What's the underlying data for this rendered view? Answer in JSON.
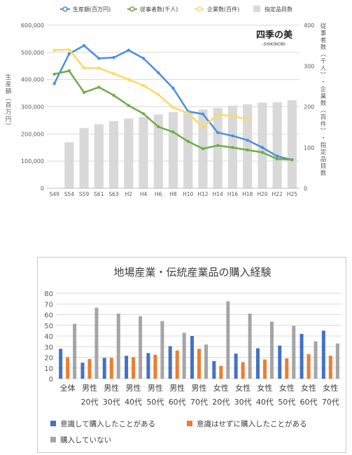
{
  "chart_data": [
    {
      "type": "bar",
      "categories": [
        "S49",
        "S54",
        "S59",
        "S61",
        "S63",
        "H2",
        "H4",
        "H6",
        "H8",
        "H10",
        "H12",
        "H14",
        "H16",
        "H18",
        "H20",
        "H22",
        "H25"
      ],
      "series": [
        {
          "name": "生産額(百万円)",
          "axis": "left",
          "kind": "line",
          "color": "#4a90e2",
          "values": [
            385000,
            495000,
            525000,
            478000,
            481000,
            508000,
            478000,
            425000,
            368000,
            283000,
            273000,
            205000,
            193000,
            177000,
            150000,
            118000,
            105000
          ]
        },
        {
          "name": "従事者数(千人)",
          "axis": "right",
          "kind": "line",
          "color": "#70ad47",
          "values": [
            280,
            288,
            235,
            248,
            228,
            203,
            183,
            151,
            138,
            115,
            97,
            105,
            100,
            94,
            88,
            72,
            70
          ]
        },
        {
          "name": "企業数(百件)",
          "axis": "right",
          "kind": "line",
          "color": "#ffd966",
          "values": [
            339,
            340,
            295,
            295,
            281,
            267,
            252,
            230,
            198,
            185,
            150,
            181,
            177,
            169,
            null,
            null,
            null
          ]
        },
        {
          "name": "指定品目数",
          "axis": "right",
          "kind": "bar",
          "color": "#d9d9d9",
          "values": [
            null,
            113,
            148,
            157,
            165,
            171,
            175,
            181,
            187,
            189,
            193,
            197,
            203,
            206,
            210,
            211,
            216
          ]
        }
      ],
      "yleft": {
        "min": 0,
        "max": 600000,
        "ticks": [
          "0",
          "100,000",
          "200,000",
          "300,000",
          "400,000",
          "500,000",
          "600,000"
        ]
      },
      "yright": {
        "min": 0,
        "max": 400,
        "ticks": [
          "0",
          "100",
          "200",
          "300",
          "400"
        ]
      },
      "ylabel_left": "生産額（百万円）",
      "ylabel_right": "従事者数（千人）・企業数（百件）・指定品目数",
      "legend_position": "top",
      "logo": {
        "main": "四季の美",
        "sub": "-SHIKINOBI-"
      }
    },
    {
      "type": "bar",
      "title": "地場産業・伝統産業品の購入経験",
      "categories": [
        [
          "全体"
        ],
        [
          "男性",
          "20代"
        ],
        [
          "男性",
          "30代"
        ],
        [
          "男性",
          "40代"
        ],
        [
          "男性",
          "50代"
        ],
        [
          "男性",
          "60代"
        ],
        [
          "男性",
          "70代"
        ],
        [
          "女性",
          "20代"
        ],
        [
          "女性",
          "30代"
        ],
        [
          "女性",
          "40代"
        ],
        [
          "女性",
          "50代"
        ],
        [
          "女性",
          "60代"
        ],
        [
          "女性",
          "70代"
        ]
      ],
      "series": [
        {
          "name": "意識して購入したことがある",
          "color": "#4472c4",
          "values": [
            28,
            15,
            19.5,
            21.5,
            24,
            30.5,
            40,
            16.5,
            23.5,
            28.5,
            31,
            42,
            45
          ]
        },
        {
          "name": "意識はせずに購入したことがある",
          "color": "#ed7d31",
          "values": [
            20,
            18.5,
            19.5,
            20,
            22.5,
            26.5,
            28,
            12,
            15.5,
            18,
            19,
            23,
            21.5
          ]
        },
        {
          "name": "購入していない",
          "color": "#a5a5a5",
          "values": [
            51.5,
            66.5,
            61,
            58.5,
            54,
            43,
            32,
            72.5,
            61,
            53.5,
            49.5,
            35,
            33
          ]
        }
      ],
      "ylim": [
        0,
        80
      ],
      "yticks": [
        "0",
        "10",
        "20",
        "30",
        "40",
        "50",
        "60",
        "70",
        "80"
      ],
      "legend_position": "bottom"
    }
  ]
}
